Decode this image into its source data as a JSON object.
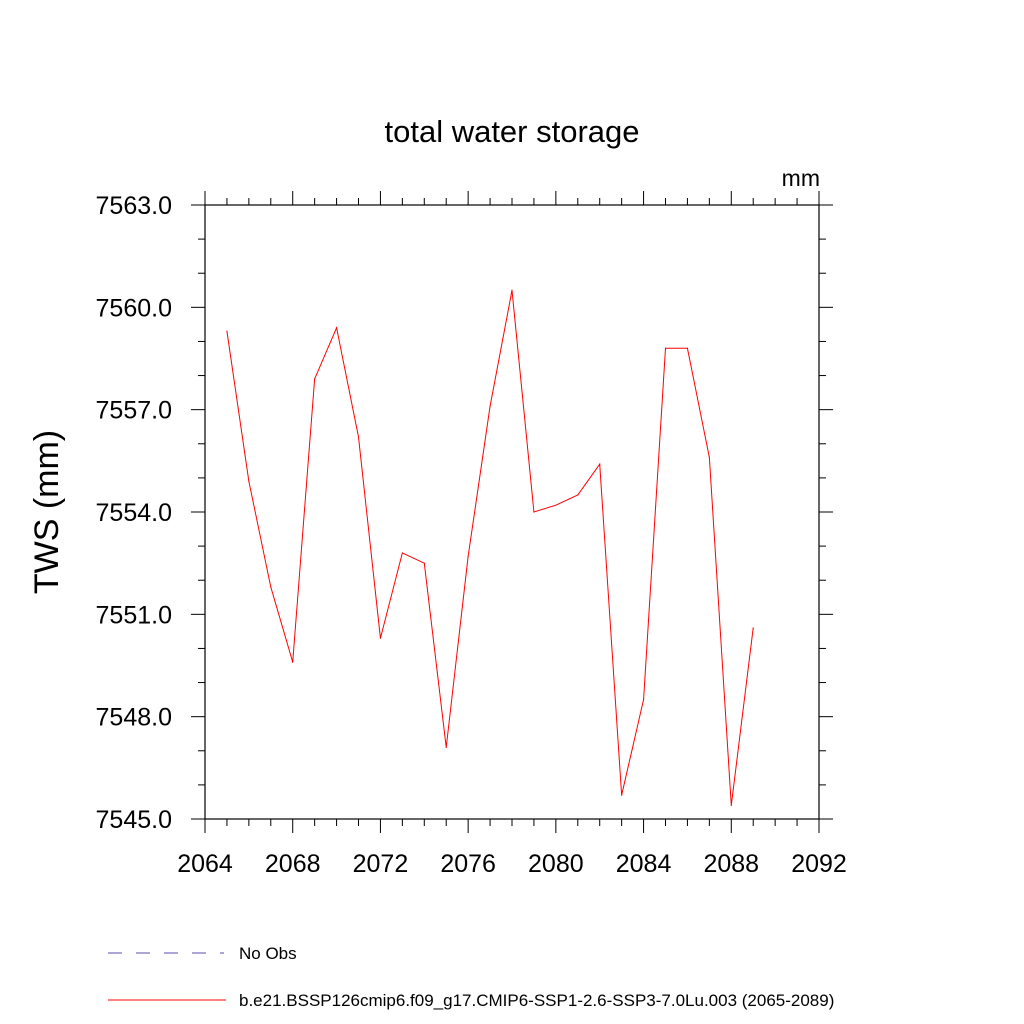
{
  "chart_data": {
    "type": "line",
    "title": "total water storage",
    "units_label": "mm",
    "xlabel": "",
    "ylabel": "TWS  (mm)",
    "xlim": [
      2064,
      2092
    ],
    "ylim": [
      7545.0,
      7563.0
    ],
    "x_ticks": [
      2064,
      2068,
      2072,
      2076,
      2080,
      2084,
      2088,
      2092
    ],
    "x_tick_labels": [
      "2064",
      "2068",
      "2072",
      "2076",
      "2080",
      "2084",
      "2088",
      "2092"
    ],
    "x_minor_step": 1,
    "y_ticks": [
      7545.0,
      7548.0,
      7551.0,
      7554.0,
      7557.0,
      7560.0,
      7563.0
    ],
    "y_tick_labels": [
      "7545.0",
      "7548.0",
      "7551.0",
      "7554.0",
      "7557.0",
      "7560.0",
      "7563.0"
    ],
    "y_minor_step": 1.0,
    "grid": false,
    "legend_position": "bottom",
    "series": [
      {
        "name": "b.e21.BSSP126cmip6.f09_g17.CMIP6-SSP1-2.6-SSP3-7.0Lu.003 (2065-2089)",
        "color": "#ff0000",
        "style": "solid",
        "x": [
          2065,
          2066,
          2067,
          2068,
          2069,
          2070,
          2071,
          2072,
          2073,
          2074,
          2075,
          2076,
          2077,
          2078,
          2079,
          2080,
          2081,
          2082,
          2083,
          2084,
          2085,
          2086,
          2087,
          2088,
          2089
        ],
        "values": [
          7559.3,
          7554.9,
          7551.8,
          7549.6,
          7557.9,
          7559.4,
          7556.2,
          7550.3,
          7552.8,
          7552.5,
          7547.1,
          7552.7,
          7557.1,
          7560.5,
          7554.0,
          7554.2,
          7554.5,
          7555.4,
          7545.7,
          7548.5,
          7558.8,
          7558.8,
          7555.6,
          7545.4,
          7550.6
        ]
      }
    ]
  },
  "legend": [
    {
      "label": "No Obs",
      "color": "#5a4fb0",
      "style": "dashed"
    },
    {
      "label": "b.e21.BSSP126cmip6.f09_g17.CMIP6-SSP1-2.6-SSP3-7.0Lu.003 (2065-2089)",
      "color": "#ff0000",
      "style": "solid"
    }
  ]
}
